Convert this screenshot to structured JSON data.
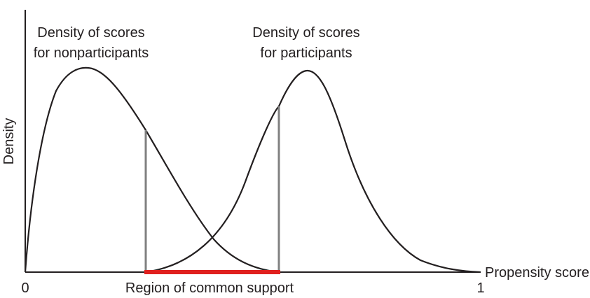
{
  "diagram": {
    "y_axis_label": "Density",
    "x_axis_label": "Propensity score",
    "x_tick_start": "0",
    "x_tick_end": "1",
    "region_label": "Region of common support",
    "nonparticipants_label": {
      "line1": "Density of scores",
      "line2": "for nonparticipants"
    },
    "participants_label": {
      "line1": "Density of scores",
      "line2": "for participants"
    }
  },
  "colors": {
    "curves": "#231f20",
    "boundary_lines": "#808080",
    "common_support": "#e0201e"
  }
}
